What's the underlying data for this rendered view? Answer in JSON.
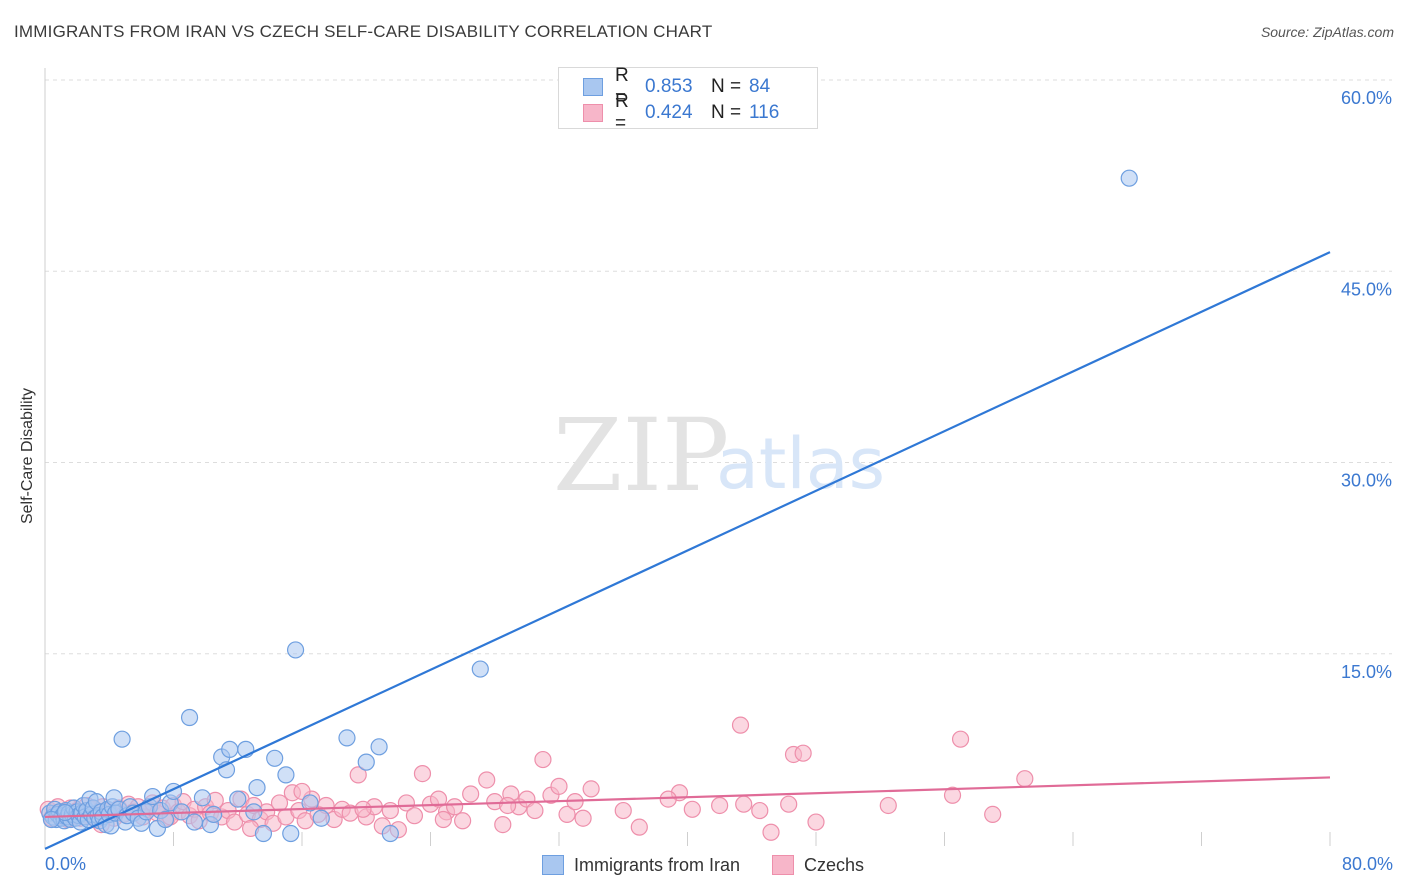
{
  "header": {
    "title": "IMMIGRANTS FROM IRAN VS CZECH SELF-CARE DISABILITY CORRELATION CHART",
    "source": "Source: ZipAtlas.com"
  },
  "watermark": {
    "zip": "ZIP",
    "atlas": "atlas"
  },
  "legend_top": [
    {
      "r_label": "R =",
      "r_value": "0.853",
      "n_label": "N =",
      "n_value": "84"
    },
    {
      "r_label": "R =",
      "r_value": "0.424",
      "n_label": "N =",
      "n_value": "116"
    }
  ],
  "legend_bottom": [
    {
      "label": "Immigrants from Iran"
    },
    {
      "label": "Czechs"
    }
  ],
  "colors": {
    "blue_fill": "#a9c7f0",
    "blue_stroke": "#6e9fe0",
    "blue_line": "#2f78d6",
    "pink_fill": "#f7b6c9",
    "pink_stroke": "#ee8fab",
    "pink_line": "#e06b97",
    "tick_blue": "#3b78d0",
    "grid": "#dddddd"
  },
  "chart_data": {
    "type": "scatter",
    "title": "IMMIGRANTS FROM IRAN VS CZECH SELF-CARE DISABILITY CORRELATION CHART",
    "xlabel": "",
    "ylabel": "Self-Care Disability",
    "xlim": [
      0,
      80
    ],
    "ylim": [
      0,
      60
    ],
    "x_tick_labels": [
      "0.0%",
      "80.0%"
    ],
    "y_ticks": [
      15,
      30,
      45,
      60
    ],
    "y_tick_labels": [
      "15.0%",
      "30.0%",
      "45.0%",
      "60.0%"
    ],
    "grid": true,
    "series": [
      {
        "name": "Immigrants from Iran",
        "r": 0.853,
        "n": 84,
        "trend": {
          "x0": 0,
          "y0": -0.3,
          "x1": 80,
          "y1": 46.5
        },
        "points": [
          [
            0.3,
            2.5
          ],
          [
            0.5,
            2.2
          ],
          [
            0.6,
            2.8
          ],
          [
            0.7,
            2.0
          ],
          [
            0.8,
            2.4
          ],
          [
            0.9,
            2.6
          ],
          [
            1.0,
            2.1
          ],
          [
            1.1,
            2.3
          ],
          [
            1.2,
            1.9
          ],
          [
            1.3,
            2.7
          ],
          [
            1.4,
            2.2
          ],
          [
            1.5,
            2.5
          ],
          [
            1.6,
            2.0
          ],
          [
            1.7,
            2.4
          ],
          [
            1.8,
            2.9
          ],
          [
            1.9,
            2.1
          ],
          [
            2.0,
            2.6
          ],
          [
            2.1,
            2.3
          ],
          [
            2.2,
            1.8
          ],
          [
            2.3,
            2.5
          ],
          [
            2.4,
            3.1
          ],
          [
            2.5,
            2.2
          ],
          [
            2.6,
            2.7
          ],
          [
            2.7,
            2.0
          ],
          [
            2.8,
            3.6
          ],
          [
            2.9,
            2.4
          ],
          [
            3.0,
            2.9
          ],
          [
            3.1,
            2.1
          ],
          [
            3.2,
            3.4
          ],
          [
            3.3,
            2.3
          ],
          [
            3.4,
            1.9
          ],
          [
            3.5,
            2.6
          ],
          [
            3.6,
            2.2
          ],
          [
            3.8,
            1.6
          ],
          [
            3.9,
            2.8
          ],
          [
            4.0,
            2.4
          ],
          [
            4.1,
            1.5
          ],
          [
            4.2,
            3.0
          ],
          [
            4.3,
            3.7
          ],
          [
            4.4,
            2.5
          ],
          [
            4.6,
            2.8
          ],
          [
            4.8,
            8.3
          ],
          [
            5.0,
            1.8
          ],
          [
            5.1,
            2.3
          ],
          [
            5.3,
            3.0
          ],
          [
            5.5,
            2.5
          ],
          [
            5.8,
            2.1
          ],
          [
            6.0,
            1.7
          ],
          [
            6.3,
            2.6
          ],
          [
            6.5,
            3.0
          ],
          [
            6.7,
            3.8
          ],
          [
            7.0,
            1.3
          ],
          [
            7.2,
            2.7
          ],
          [
            7.5,
            2.0
          ],
          [
            7.8,
            3.3
          ],
          [
            8.0,
            4.2
          ],
          [
            8.5,
            2.6
          ],
          [
            9.0,
            10.0
          ],
          [
            9.3,
            1.8
          ],
          [
            9.8,
            3.7
          ],
          [
            10.3,
            1.6
          ],
          [
            10.5,
            2.4
          ],
          [
            11.0,
            6.9
          ],
          [
            11.3,
            5.9
          ],
          [
            11.5,
            7.5
          ],
          [
            12.0,
            3.6
          ],
          [
            12.5,
            7.5
          ],
          [
            13.0,
            2.6
          ],
          [
            13.2,
            4.5
          ],
          [
            13.6,
            0.9
          ],
          [
            14.3,
            6.8
          ],
          [
            15.0,
            5.5
          ],
          [
            15.3,
            0.9
          ],
          [
            15.6,
            15.3
          ],
          [
            16.5,
            3.3
          ],
          [
            17.2,
            2.1
          ],
          [
            18.8,
            8.4
          ],
          [
            20.0,
            6.5
          ],
          [
            20.8,
            7.7
          ],
          [
            21.5,
            0.9
          ],
          [
            27.1,
            13.8
          ],
          [
            67.5,
            52.3
          ],
          [
            0.4,
            2.0
          ],
          [
            1.25,
            2.55
          ]
        ]
      },
      {
        "name": "Czechs",
        "r": 0.424,
        "n": 116,
        "trend": {
          "x0": 0,
          "y0": 2.2,
          "x1": 80,
          "y1": 5.3
        },
        "points": [
          [
            0.2,
            2.8
          ],
          [
            0.4,
            2.1
          ],
          [
            0.6,
            2.5
          ],
          [
            0.8,
            3.0
          ],
          [
            1.0,
            2.2
          ],
          [
            1.2,
            2.6
          ],
          [
            1.4,
            2.0
          ],
          [
            1.6,
            2.9
          ],
          [
            1.8,
            2.3
          ],
          [
            2.0,
            2.7
          ],
          [
            2.2,
            2.1
          ],
          [
            2.4,
            2.5
          ],
          [
            2.6,
            3.1
          ],
          [
            2.8,
            2.2
          ],
          [
            3.0,
            2.8
          ],
          [
            3.2,
            2.0
          ],
          [
            3.4,
            2.6
          ],
          [
            3.6,
            3.0
          ],
          [
            3.8,
            2.3
          ],
          [
            4.0,
            2.7
          ],
          [
            4.3,
            2.1
          ],
          [
            4.6,
            2.9
          ],
          [
            4.9,
            2.4
          ],
          [
            5.2,
            3.2
          ],
          [
            5.5,
            2.6
          ],
          [
            5.8,
            3.0
          ],
          [
            6.1,
            2.2
          ],
          [
            6.4,
            2.8
          ],
          [
            6.7,
            3.3
          ],
          [
            7.0,
            2.5
          ],
          [
            7.3,
            2.9
          ],
          [
            7.6,
            2.1
          ],
          [
            8.0,
            3.1
          ],
          [
            8.3,
            2.6
          ],
          [
            8.6,
            3.4
          ],
          [
            9.0,
            2.3
          ],
          [
            9.3,
            2.8
          ],
          [
            9.6,
            1.9
          ],
          [
            10.0,
            3.0
          ],
          [
            10.3,
            2.5
          ],
          [
            10.6,
            3.5
          ],
          [
            11.0,
            2.2
          ],
          [
            11.4,
            2.7
          ],
          [
            11.8,
            1.8
          ],
          [
            12.2,
            3.6
          ],
          [
            12.6,
            2.4
          ],
          [
            13.0,
            3.1
          ],
          [
            13.4,
            2.0
          ],
          [
            13.8,
            2.6
          ],
          [
            14.2,
            1.7
          ],
          [
            14.6,
            3.3
          ],
          [
            15.0,
            2.2
          ],
          [
            15.4,
            4.1
          ],
          [
            15.8,
            2.7
          ],
          [
            16.2,
            1.9
          ],
          [
            16.6,
            3.6
          ],
          [
            17.0,
            2.4
          ],
          [
            17.5,
            3.1
          ],
          [
            18.0,
            2.0
          ],
          [
            18.5,
            2.8
          ],
          [
            19.0,
            2.5
          ],
          [
            19.5,
            5.5
          ],
          [
            20.0,
            2.2
          ],
          [
            20.5,
            3.0
          ],
          [
            21.0,
            1.5
          ],
          [
            21.5,
            2.7
          ],
          [
            22.0,
            1.2
          ],
          [
            22.5,
            3.3
          ],
          [
            23.0,
            2.3
          ],
          [
            23.5,
            5.6
          ],
          [
            24.0,
            3.2
          ],
          [
            24.5,
            3.6
          ],
          [
            25.0,
            2.6
          ],
          [
            25.5,
            3.0
          ],
          [
            26.0,
            1.9
          ],
          [
            26.5,
            4.0
          ],
          [
            27.5,
            5.1
          ],
          [
            28.0,
            3.4
          ],
          [
            28.5,
            1.6
          ],
          [
            29.0,
            4.0
          ],
          [
            29.5,
            3.0
          ],
          [
            30.0,
            3.6
          ],
          [
            30.5,
            2.7
          ],
          [
            31.0,
            6.7
          ],
          [
            31.5,
            3.9
          ],
          [
            32.0,
            4.6
          ],
          [
            32.5,
            2.4
          ],
          [
            33.0,
            3.4
          ],
          [
            34.0,
            4.4
          ],
          [
            36.0,
            2.7
          ],
          [
            37.0,
            1.4
          ],
          [
            39.5,
            4.1
          ],
          [
            40.3,
            2.8
          ],
          [
            42.0,
            3.1
          ],
          [
            43.3,
            9.4
          ],
          [
            43.5,
            3.2
          ],
          [
            44.5,
            2.7
          ],
          [
            45.2,
            1.0
          ],
          [
            46.3,
            3.2
          ],
          [
            46.6,
            7.1
          ],
          [
            47.2,
            7.2
          ],
          [
            48.0,
            1.8
          ],
          [
            52.5,
            3.1
          ],
          [
            56.5,
            3.9
          ],
          [
            57.0,
            8.3
          ],
          [
            59.0,
            2.4
          ],
          [
            61.0,
            5.2
          ],
          [
            3.5,
            1.6
          ],
          [
            7.8,
            2.2
          ],
          [
            12.8,
            1.3
          ],
          [
            16.0,
            4.2
          ],
          [
            19.8,
            2.8
          ],
          [
            24.8,
            2.0
          ],
          [
            28.8,
            3.1
          ],
          [
            33.5,
            2.1
          ],
          [
            38.8,
            3.6
          ]
        ]
      }
    ]
  }
}
